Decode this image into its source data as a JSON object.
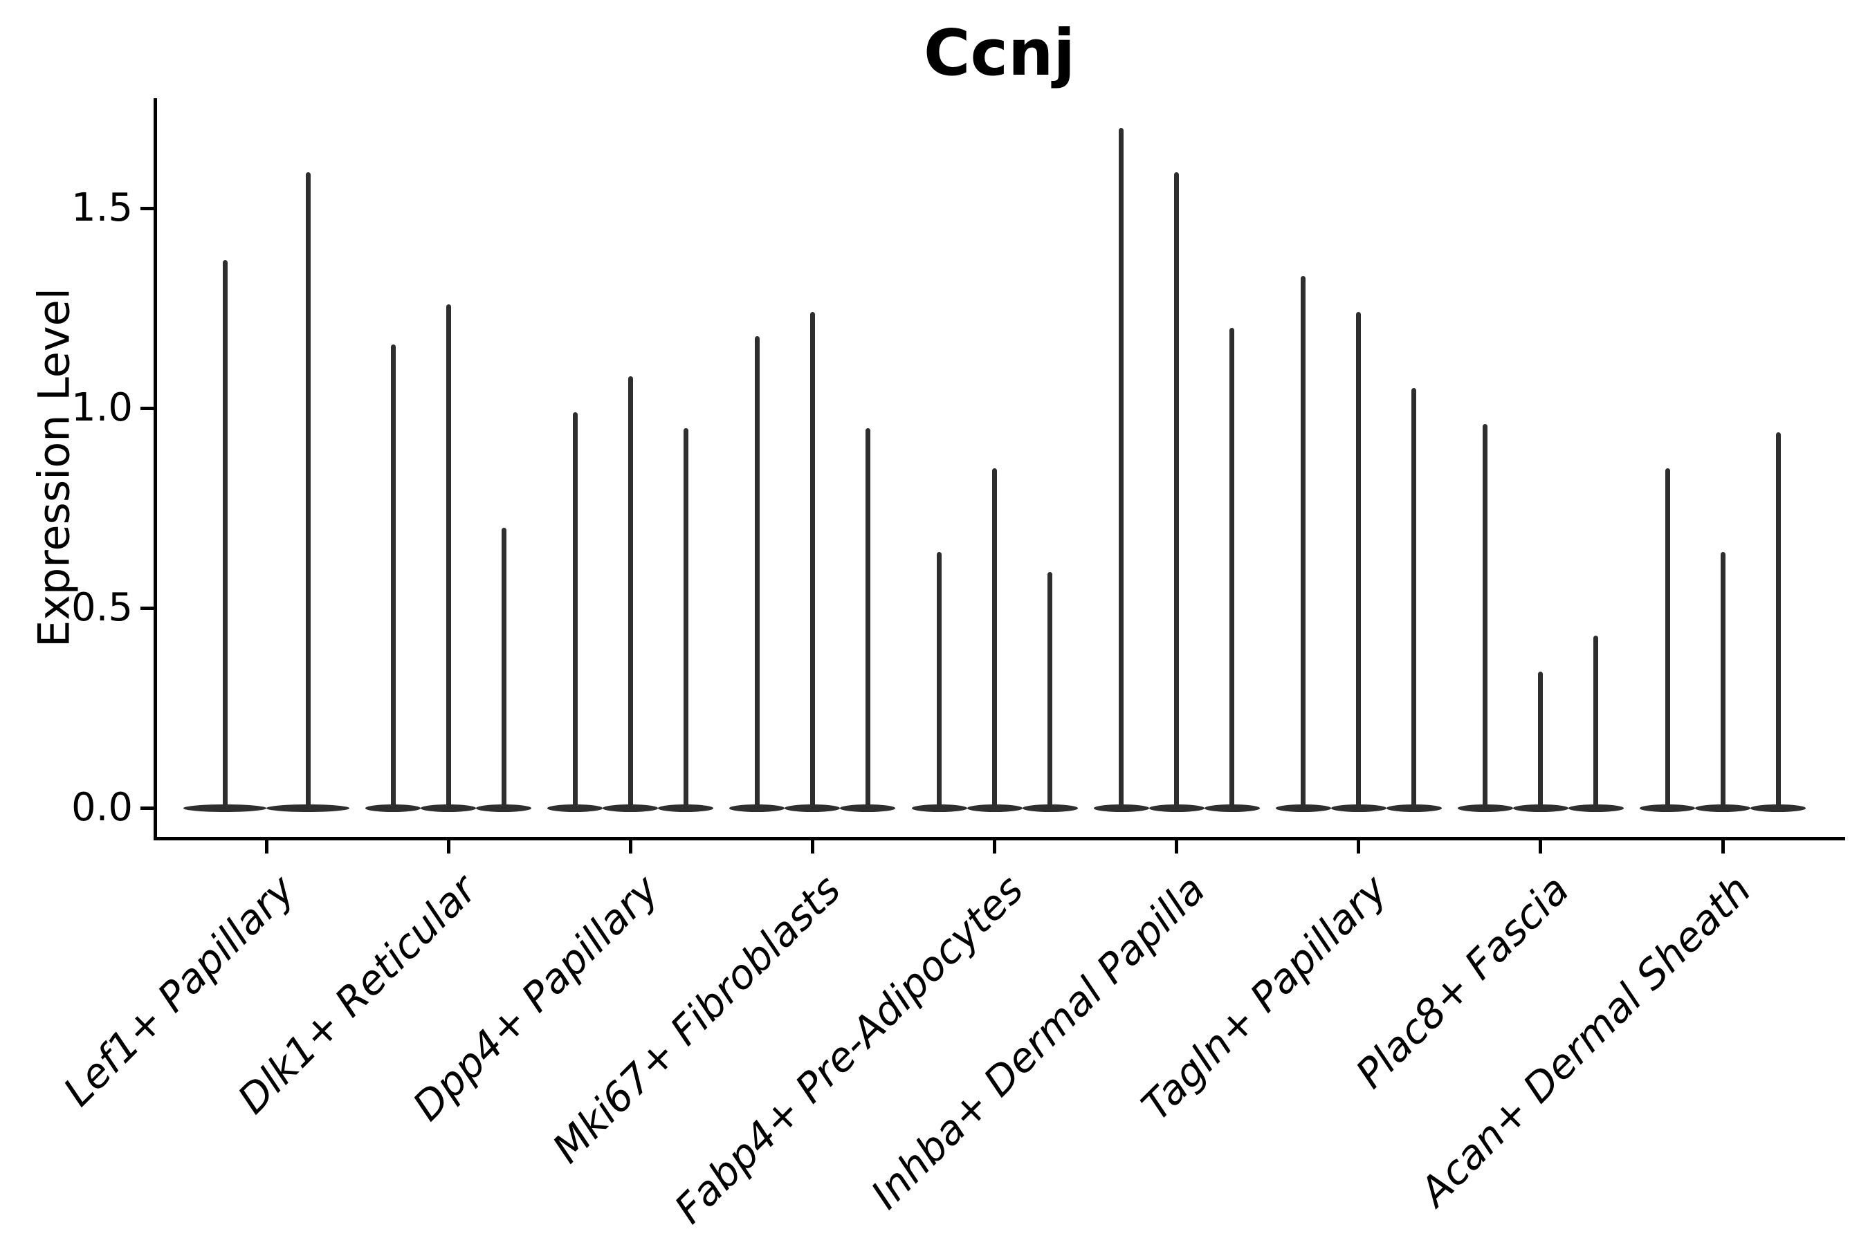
{
  "chart_data": {
    "type": "violin",
    "title": "Ccnj",
    "ylabel": "Expression Level",
    "xlabel": "",
    "ytick_labels": [
      "0.0",
      "0.5",
      "1.0",
      "1.5"
    ],
    "ytick_values": [
      0.0,
      0.5,
      1.0,
      1.5
    ],
    "ylim": [
      -0.07,
      1.78
    ],
    "grid": false,
    "legend": "none",
    "x_label_rotation_deg": 45,
    "x_label_style": "italic",
    "description": "Seurat-style violin plot of Ccnj expression; each violin is a thin spike rising from a flat mass at 0 to its maximum expression value",
    "categories": [
      "Lef1+ Papillary",
      "Dlk1+ Reticular",
      "Dpp4+ Papillary",
      "Mki67+ Fibroblasts",
      "Fabp4+ Pre-Adipocytes",
      "Inhba+ Dermal Papilla",
      "Tagln+ Papillary",
      "Plac8+ Fascia",
      "Acan+ Dermal Sheath"
    ],
    "violins": [
      {
        "category": "Lef1+ Papillary",
        "spike_maxima": [
          1.37,
          1.59
        ]
      },
      {
        "category": "Dlk1+ Reticular",
        "spike_maxima": [
          1.16,
          1.26,
          0.7
        ]
      },
      {
        "category": "Dpp4+ Papillary",
        "spike_maxima": [
          0.99,
          1.08,
          0.95
        ]
      },
      {
        "category": "Mki67+ Fibroblasts",
        "spike_maxima": [
          1.18,
          1.24,
          0.95
        ]
      },
      {
        "category": "Fabp4+ Pre-Adipocytes",
        "spike_maxima": [
          0.64,
          0.85,
          0.59
        ]
      },
      {
        "category": "Inhba+ Dermal Papilla",
        "spike_maxima": [
          1.7,
          1.59,
          1.2
        ]
      },
      {
        "category": "Tagln+ Papillary",
        "spike_maxima": [
          1.33,
          1.24,
          1.05
        ]
      },
      {
        "category": "Plac8+ Fascia",
        "spike_maxima": [
          0.96,
          0.34,
          0.43
        ]
      },
      {
        "category": "Acan+ Dermal Sheath",
        "spike_maxima": [
          0.85,
          0.64,
          0.94
        ]
      }
    ],
    "colors": {
      "violin": "#2e2e2e",
      "axis": "#000000",
      "text": "#000000",
      "background": "#ffffff"
    }
  }
}
